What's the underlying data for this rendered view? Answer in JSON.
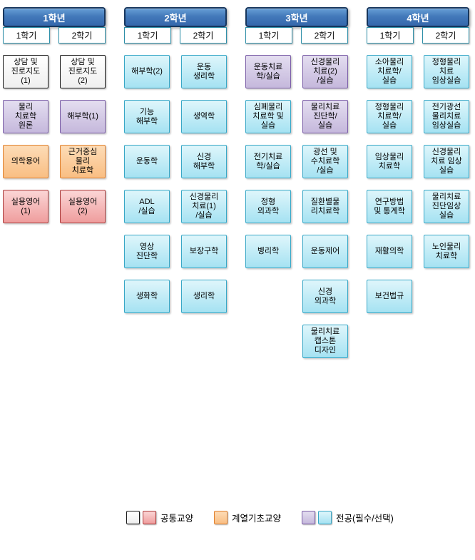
{
  "diagram_title": "curriculum-flowchart",
  "colors": {
    "year_header_fill": "#4379BA",
    "year_header_border": "#17365D",
    "semester_tab_border": "#2E8FA8",
    "common_general_fill": "#FFFFFF",
    "common_general_border": "#1A1A1A",
    "common_english_fill": "#F2A6A6",
    "common_english_border": "#AC3B3B",
    "basic_liberal_fill": "#FAC08D",
    "basic_liberal_border": "#E0812F",
    "major_purple_fill": "#CCC0DA",
    "major_purple_border": "#7B5EA7",
    "major_cyan_fill": "#AEE6F4",
    "major_cyan_border": "#38A7C6"
  },
  "years": [
    {
      "title": "1학년",
      "semesters": [
        {
          "label": "1학기",
          "courses": [
            {
              "label": "상담 및\n진로지도\n(1)",
              "type": "common-white"
            },
            {
              "label": "물리\n치료학\n원론",
              "type": "major-purple"
            },
            {
              "label": "의학용어",
              "type": "basic-orange"
            },
            {
              "label": "실용영어\n(1)",
              "type": "common-pink"
            }
          ]
        },
        {
          "label": "2학기",
          "courses": [
            {
              "label": "상담 및\n진로지도\n(2)",
              "type": "common-white"
            },
            {
              "label": "해부학(1)",
              "type": "major-purple"
            },
            {
              "label": "근거중심\n물리\n치료학",
              "type": "basic-orange"
            },
            {
              "label": "실용영어\n(2)",
              "type": "common-pink"
            }
          ]
        }
      ]
    },
    {
      "title": "2학년",
      "semesters": [
        {
          "label": "1학기",
          "courses": [
            {
              "label": "해부학(2)",
              "type": "major-cyan"
            },
            {
              "label": "기능\n해부학",
              "type": "major-cyan"
            },
            {
              "label": "운동학",
              "type": "major-cyan"
            },
            {
              "label": "ADL\n/실습",
              "type": "major-cyan"
            },
            {
              "label": "영상\n진단학",
              "type": "major-cyan"
            },
            {
              "label": "생화학",
              "type": "major-cyan"
            }
          ]
        },
        {
          "label": "2학기",
          "courses": [
            {
              "label": "운동\n생리학",
              "type": "major-cyan"
            },
            {
              "label": "생역학",
              "type": "major-cyan"
            },
            {
              "label": "신경\n해부학",
              "type": "major-cyan"
            },
            {
              "label": "신경물리\n치료(1)\n/실습",
              "type": "major-cyan"
            },
            {
              "label": "보장구학",
              "type": "major-cyan"
            },
            {
              "label": "생리학",
              "type": "major-cyan"
            }
          ]
        }
      ]
    },
    {
      "title": "3학년",
      "semesters": [
        {
          "label": "1학기",
          "courses": [
            {
              "label": "운동치료\n학/실습",
              "type": "major-purple"
            },
            {
              "label": "심폐물리\n치료학 및\n실습",
              "type": "major-cyan"
            },
            {
              "label": "전기치료\n학/실습",
              "type": "major-cyan"
            },
            {
              "label": "정형\n외과학",
              "type": "major-cyan"
            },
            {
              "label": "병리학",
              "type": "major-cyan"
            }
          ]
        },
        {
          "label": "2학기",
          "courses": [
            {
              "label": "신경물리\n치료(2)\n/실습",
              "type": "major-purple"
            },
            {
              "label": "물리치료\n진단학/\n실습",
              "type": "major-purple"
            },
            {
              "label": "광선 및\n수치료학\n/실습",
              "type": "major-cyan"
            },
            {
              "label": "질환별물\n리치료학",
              "type": "major-cyan"
            },
            {
              "label": "운동제어",
              "type": "major-cyan"
            },
            {
              "label": "신경\n외과학",
              "type": "major-cyan"
            },
            {
              "label": "물리치료\n캡스톤\n디자인",
              "type": "major-cyan"
            }
          ]
        }
      ]
    },
    {
      "title": "4학년",
      "semesters": [
        {
          "label": "1학기",
          "courses": [
            {
              "label": "소아물리\n치료학/\n실습",
              "type": "major-cyan"
            },
            {
              "label": "정형물리\n치료학/\n실습",
              "type": "major-cyan"
            },
            {
              "label": "임상물리\n치료학",
              "type": "major-cyan"
            },
            {
              "label": "연구방법\n및 통계학",
              "type": "major-cyan"
            },
            {
              "label": "재활의학",
              "type": "major-cyan"
            },
            {
              "label": "보건법규",
              "type": "major-cyan"
            }
          ]
        },
        {
          "label": "2학기",
          "courses": [
            {
              "label": "정형물리\n치료\n임상실습",
              "type": "major-cyan"
            },
            {
              "label": "전기광선\n물리치료\n임상실습",
              "type": "major-cyan"
            },
            {
              "label": "신경물리\n치료 임상\n실습",
              "type": "major-cyan"
            },
            {
              "label": "물리치료\n진단임상\n실습",
              "type": "major-cyan"
            },
            {
              "label": "노인물리\n치료학",
              "type": "major-cyan"
            }
          ]
        }
      ]
    }
  ],
  "legend": {
    "items": [
      {
        "label": "공통교양",
        "swatches": [
          "common-white",
          "common-pink"
        ]
      },
      {
        "label": "계열기초교양",
        "swatches": [
          "basic-orange"
        ]
      },
      {
        "label": "전공(필수/선택)",
        "swatches": [
          "major-purple",
          "major-cyan"
        ]
      }
    ]
  }
}
